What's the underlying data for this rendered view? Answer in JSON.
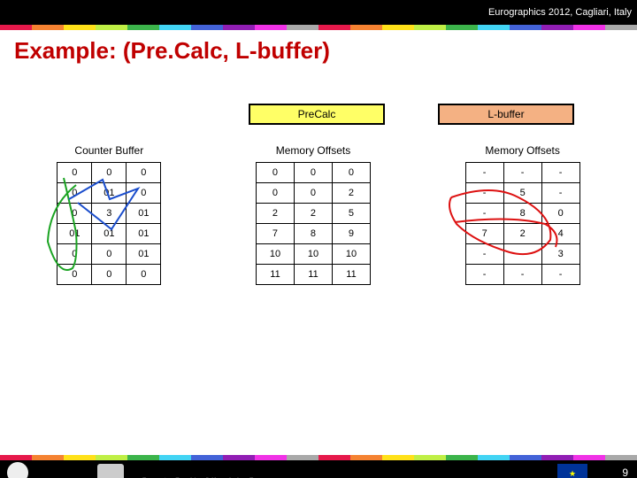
{
  "header_text": "Eurographics 2012, Cagliari, Italy",
  "title": "Example: (Pre.Calc, L-buffer)",
  "box_left": "PreCalc",
  "box_right": "L-buffer",
  "table_label_1": "Counter Buffer",
  "table_label_2": "Memory Offsets",
  "table_label_3": "Memory Offsets",
  "counter": {
    "rows": [
      [
        "0",
        "0",
        "0"
      ],
      [
        "0",
        "01",
        "0"
      ],
      [
        "0",
        "3",
        "01"
      ],
      [
        "01",
        "01",
        "01"
      ],
      [
        "0",
        "0",
        "01"
      ],
      [
        "0",
        "0",
        "0"
      ]
    ]
  },
  "memoff1": {
    "rows": [
      [
        "0",
        "0",
        "0"
      ],
      [
        "0",
        "0",
        "2"
      ],
      [
        "2",
        "2",
        "5"
      ],
      [
        "7",
        "8",
        "9"
      ],
      [
        "10",
        "10",
        "10"
      ],
      [
        "11",
        "11",
        "11"
      ]
    ]
  },
  "memoff2": {
    "rows": [
      [
        "-",
        "-",
        "-"
      ],
      [
        "-",
        "5",
        "-"
      ],
      [
        "-",
        "8",
        "0"
      ],
      [
        "7",
        "2",
        "4"
      ],
      [
        "-",
        "-",
        "3"
      ],
      [
        "-",
        "-",
        "-"
      ]
    ]
  },
  "rainbow_colors": [
    "#e6194b",
    "#f58231",
    "#ffe119",
    "#bfef45",
    "#3cb44b",
    "#42d4f4",
    "#4363d8",
    "#911eb4",
    "#f032e6",
    "#a9a9a9",
    "#e6194b",
    "#f58231",
    "#ffe119",
    "#bfef45",
    "#3cb44b",
    "#42d4f4",
    "#4363d8",
    "#911eb4",
    "#f032e6",
    "#a9a9a9"
  ],
  "slide_number": "9",
  "scribble_colors": {
    "green": "#1aa322",
    "blue": "#1a4dcc",
    "red": "#d11"
  }
}
